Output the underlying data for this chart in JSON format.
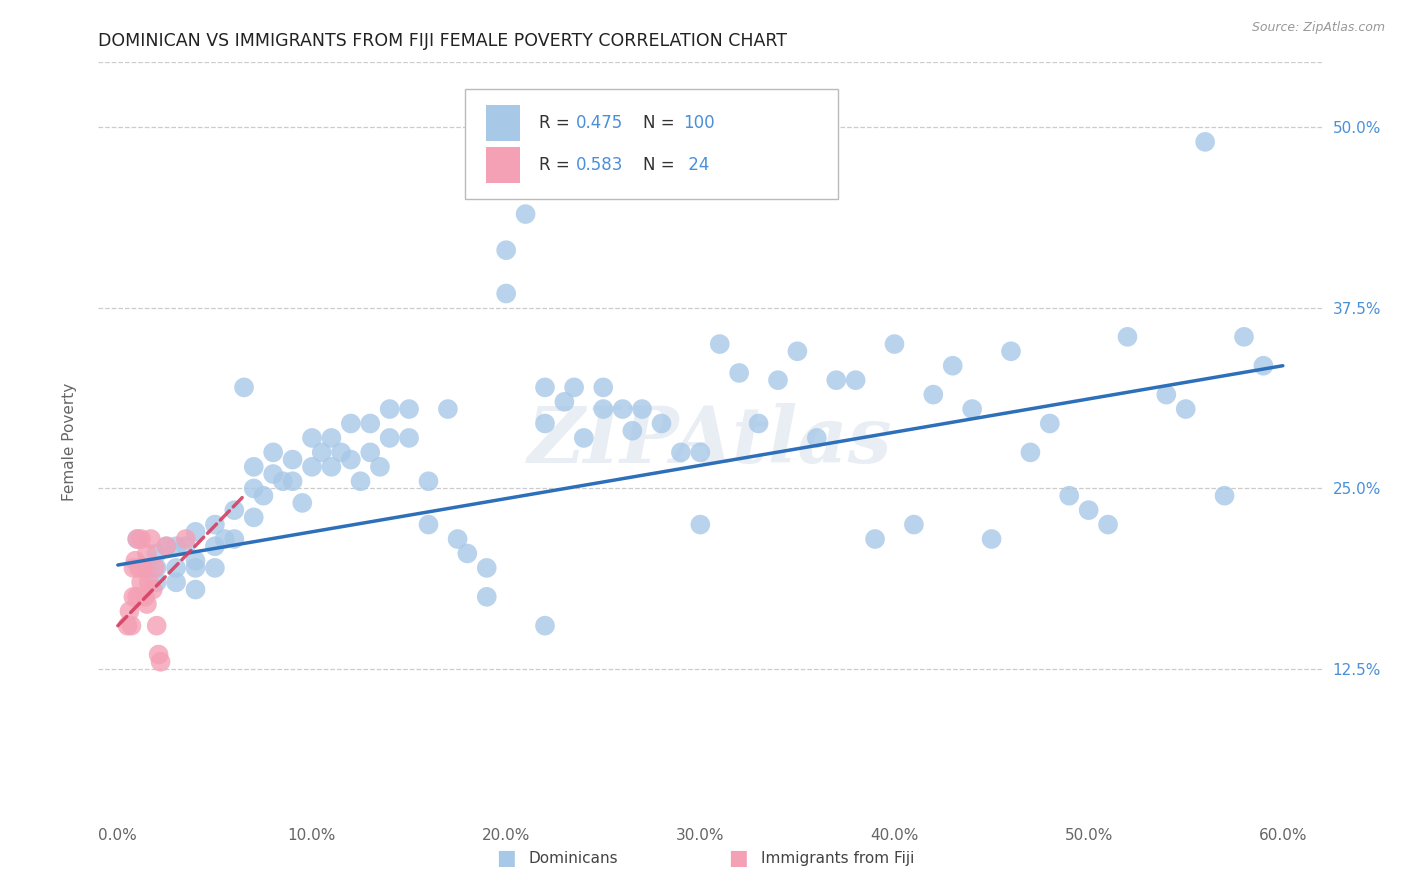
{
  "title": "DOMINICAN VS IMMIGRANTS FROM FIJI FEMALE POVERTY CORRELATION CHART",
  "source": "Source: ZipAtlas.com",
  "ylabel": "Female Poverty",
  "ytick_labels": [
    "12.5%",
    "25.0%",
    "37.5%",
    "50.0%"
  ],
  "ytick_values": [
    0.125,
    0.25,
    0.375,
    0.5
  ],
  "xtick_vals": [
    0.0,
    0.1,
    0.2,
    0.3,
    0.4,
    0.5,
    0.6
  ],
  "xlim": [
    -0.01,
    0.62
  ],
  "ylim": [
    0.02,
    0.545
  ],
  "dominican_color": "#a8c8e8",
  "fiji_color": "#f4a0b5",
  "trendline1_color": "#2e6fba",
  "trendline2_color": "#d44060",
  "watermark": "ZIPAtlas",
  "dominican_x": [
    0.01,
    0.015,
    0.02,
    0.02,
    0.02,
    0.025,
    0.03,
    0.03,
    0.03,
    0.035,
    0.04,
    0.04,
    0.04,
    0.04,
    0.05,
    0.05,
    0.05,
    0.055,
    0.06,
    0.06,
    0.065,
    0.07,
    0.07,
    0.07,
    0.075,
    0.08,
    0.08,
    0.085,
    0.09,
    0.09,
    0.095,
    0.1,
    0.1,
    0.105,
    0.11,
    0.11,
    0.115,
    0.12,
    0.12,
    0.125,
    0.13,
    0.13,
    0.135,
    0.14,
    0.14,
    0.15,
    0.15,
    0.16,
    0.16,
    0.17,
    0.175,
    0.18,
    0.19,
    0.19,
    0.2,
    0.2,
    0.21,
    0.22,
    0.22,
    0.23,
    0.235,
    0.24,
    0.25,
    0.25,
    0.26,
    0.265,
    0.27,
    0.28,
    0.29,
    0.3,
    0.3,
    0.31,
    0.32,
    0.33,
    0.34,
    0.35,
    0.36,
    0.37,
    0.38,
    0.39,
    0.4,
    0.41,
    0.42,
    0.43,
    0.44,
    0.45,
    0.46,
    0.47,
    0.48,
    0.49,
    0.5,
    0.51,
    0.52,
    0.54,
    0.55,
    0.56,
    0.57,
    0.58,
    0.59,
    0.22
  ],
  "dominican_y": [
    0.215,
    0.195,
    0.205,
    0.195,
    0.185,
    0.21,
    0.21,
    0.195,
    0.185,
    0.21,
    0.22,
    0.2,
    0.195,
    0.18,
    0.225,
    0.21,
    0.195,
    0.215,
    0.235,
    0.215,
    0.32,
    0.265,
    0.25,
    0.23,
    0.245,
    0.275,
    0.26,
    0.255,
    0.27,
    0.255,
    0.24,
    0.285,
    0.265,
    0.275,
    0.285,
    0.265,
    0.275,
    0.295,
    0.27,
    0.255,
    0.295,
    0.275,
    0.265,
    0.305,
    0.285,
    0.305,
    0.285,
    0.225,
    0.255,
    0.305,
    0.215,
    0.205,
    0.195,
    0.175,
    0.415,
    0.385,
    0.44,
    0.32,
    0.295,
    0.31,
    0.32,
    0.285,
    0.32,
    0.305,
    0.305,
    0.29,
    0.305,
    0.295,
    0.275,
    0.275,
    0.225,
    0.35,
    0.33,
    0.295,
    0.325,
    0.345,
    0.285,
    0.325,
    0.325,
    0.215,
    0.35,
    0.225,
    0.315,
    0.335,
    0.305,
    0.215,
    0.345,
    0.275,
    0.295,
    0.245,
    0.235,
    0.225,
    0.355,
    0.315,
    0.305,
    0.49,
    0.245,
    0.355,
    0.335,
    0.155
  ],
  "fiji_x": [
    0.005,
    0.006,
    0.007,
    0.008,
    0.008,
    0.009,
    0.01,
    0.01,
    0.011,
    0.012,
    0.012,
    0.013,
    0.014,
    0.015,
    0.015,
    0.016,
    0.017,
    0.018,
    0.019,
    0.02,
    0.021,
    0.022,
    0.025,
    0.035
  ],
  "fiji_y": [
    0.155,
    0.165,
    0.155,
    0.195,
    0.175,
    0.2,
    0.215,
    0.175,
    0.195,
    0.215,
    0.185,
    0.195,
    0.175,
    0.205,
    0.17,
    0.185,
    0.215,
    0.18,
    0.195,
    0.155,
    0.135,
    0.13,
    0.21,
    0.215
  ],
  "trendline1_x": [
    0.0,
    0.6
  ],
  "trendline1_y": [
    0.197,
    0.335
  ],
  "trendline2_x": [
    0.0,
    0.065
  ],
  "trendline2_y": [
    0.155,
    0.245
  ]
}
